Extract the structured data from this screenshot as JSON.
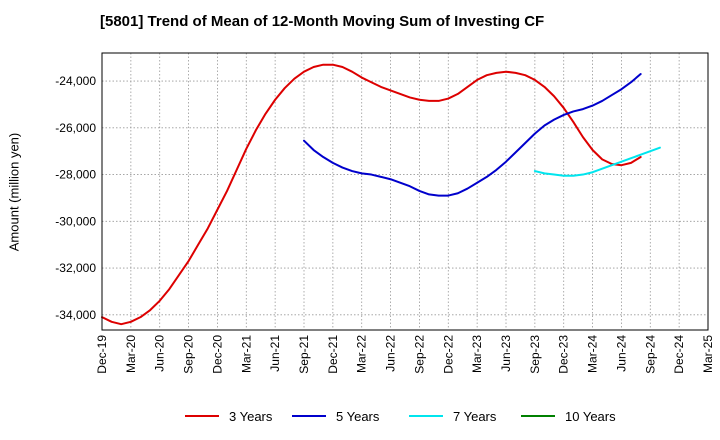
{
  "chart_data": {
    "type": "line",
    "title": "[5801]  Trend of Mean of 12-Month Moving Sum of Investing CF",
    "xlabel": "",
    "ylabel": "Amount (million yen)",
    "x_ticks": [
      "Dec-19",
      "Mar-20",
      "Jun-20",
      "Sep-20",
      "Dec-20",
      "Mar-21",
      "Jun-21",
      "Sep-21",
      "Dec-21",
      "Mar-22",
      "Jun-22",
      "Sep-22",
      "Dec-22",
      "Mar-23",
      "Jun-23",
      "Sep-23",
      "Dec-23",
      "Mar-24",
      "Jun-24",
      "Sep-24",
      "Dec-24",
      "Mar-25"
    ],
    "y_ticks": [
      -34000,
      -32000,
      -30000,
      -28000,
      -26000,
      -24000
    ],
    "y_tick_labels": [
      "-34,000",
      "-32,000",
      "-30,000",
      "-28,000",
      "-26,000",
      "-24,000"
    ],
    "ylim": [
      -34650,
      -22800
    ],
    "grid": true,
    "legend_position": "bottom",
    "series": [
      {
        "name": "3 Years",
        "color": "#dd0000",
        "start_index": 0,
        "values": [
          -34100,
          -34300,
          -34400,
          -34300,
          -34100,
          -33800,
          -33400,
          -32900,
          -32300,
          -31700,
          -31000,
          -30300,
          -29500,
          -28700,
          -27800,
          -26900,
          -26100,
          -25400,
          -24800,
          -24300,
          -23900,
          -23600,
          -23400,
          -23300,
          -23300,
          -23400,
          -23600,
          -23850,
          -24050,
          -24250,
          -24400,
          -24550,
          -24700,
          -24800,
          -24850,
          -24850,
          -24750,
          -24550,
          -24250,
          -23950,
          -23750,
          -23650,
          -23600,
          -23650,
          -23750,
          -23950,
          -24250,
          -24650,
          -25150,
          -25750,
          -26400,
          -26950,
          -27350,
          -27550,
          -27600,
          -27500,
          -27250
        ]
      },
      {
        "name": "5 Years",
        "color": "#0000cc",
        "start_index": 21,
        "values": [
          -26550,
          -26950,
          -27250,
          -27500,
          -27700,
          -27850,
          -27950,
          -28000,
          -28100,
          -28200,
          -28350,
          -28500,
          -28700,
          -28850,
          -28900,
          -28900,
          -28800,
          -28600,
          -28350,
          -28100,
          -27800,
          -27450,
          -27050,
          -26650,
          -26250,
          -25900,
          -25650,
          -25450,
          -25300,
          -25200,
          -25050,
          -24850,
          -24600,
          -24350,
          -24050,
          -23700
        ]
      },
      {
        "name": "7 Years",
        "color": "#00e5ee",
        "start_index": 45,
        "values": [
          -27850,
          -27950,
          -28000,
          -28050,
          -28050,
          -28000,
          -27900,
          -27750,
          -27600,
          -27450,
          -27300,
          -27150,
          -27000,
          -26850
        ]
      },
      {
        "name": "10 Years",
        "color": "#008000",
        "start_index": 0,
        "values": []
      }
    ]
  }
}
